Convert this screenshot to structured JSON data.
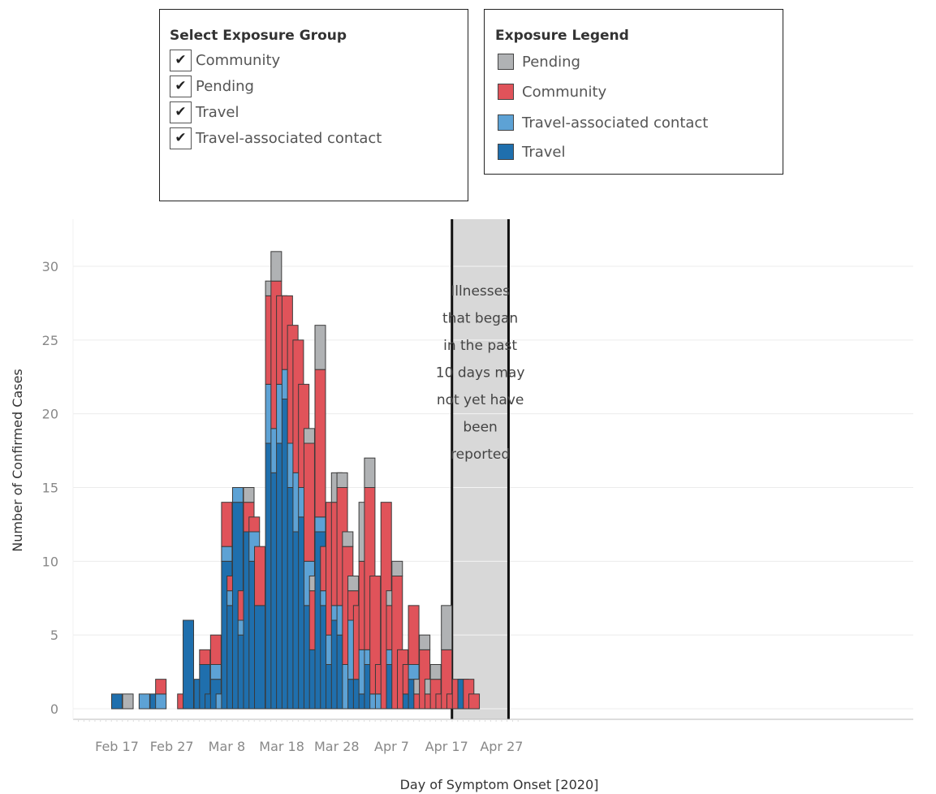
{
  "filter": {
    "title": "Select Exposure Group",
    "items": [
      {
        "label": "Community",
        "checked": true
      },
      {
        "label": "Pending",
        "checked": true
      },
      {
        "label": "Travel",
        "checked": true
      },
      {
        "label": "Travel-associated contact",
        "checked": true
      }
    ],
    "check_glyph": "✔"
  },
  "legend": {
    "title": "Exposure Legend",
    "items": [
      {
        "label": "Pending",
        "color": "#b0b2b4"
      },
      {
        "label": "Community",
        "color": "#e0535a"
      },
      {
        "label": "Travel-associated contact",
        "color": "#5da2d5"
      },
      {
        "label": "Travel",
        "color": "#1f6fad"
      }
    ]
  },
  "chart_data": {
    "type": "bar",
    "stacked": true,
    "xlabel": "Day of Symptom Onset [2020]",
    "ylabel": "Number of Confirmed Cases",
    "ylim": [
      0,
      32
    ],
    "yticks": [
      0,
      5,
      10,
      15,
      20,
      25,
      30
    ],
    "x_start": "2020-02-17",
    "x_end": "2020-04-29",
    "xticks": [
      {
        "date": "2020-02-17",
        "label": "Feb 17"
      },
      {
        "date": "2020-02-27",
        "label": "Feb 27"
      },
      {
        "date": "2020-03-08",
        "label": "Mar 8"
      },
      {
        "date": "2020-03-18",
        "label": "Mar 18"
      },
      {
        "date": "2020-03-28",
        "label": "Mar 28"
      },
      {
        "date": "2020-04-07",
        "label": "Apr 7"
      },
      {
        "date": "2020-04-17",
        "label": "Apr 17"
      },
      {
        "date": "2020-04-27",
        "label": "Apr 27"
      }
    ],
    "grid": true,
    "series_order": [
      "Travel",
      "Travel-associated contact",
      "Community",
      "Pending"
    ],
    "colors": {
      "Travel": "#1f6fad",
      "Travel-associated contact": "#5da2d5",
      "Community": "#e0535a",
      "Pending": "#b0b2b4"
    },
    "bars": [
      {
        "date": "2020-02-17",
        "Travel": 1,
        "Travel-associated contact": 0,
        "Community": 0,
        "Pending": 0
      },
      {
        "date": "2020-02-19",
        "Travel": 0,
        "Travel-associated contact": 0,
        "Community": 0,
        "Pending": 1
      },
      {
        "date": "2020-02-22",
        "Travel": 0,
        "Travel-associated contact": 1,
        "Community": 0,
        "Pending": 0
      },
      {
        "date": "2020-02-24",
        "Travel": 1,
        "Travel-associated contact": 0,
        "Community": 0,
        "Pending": 0
      },
      {
        "date": "2020-02-25",
        "Travel": 0,
        "Travel-associated contact": 1,
        "Community": 1,
        "Pending": 0
      },
      {
        "date": "2020-02-29",
        "Travel": 0,
        "Travel-associated contact": 0,
        "Community": 1,
        "Pending": 0
      },
      {
        "date": "2020-03-01",
        "Travel": 6,
        "Travel-associated contact": 0,
        "Community": 0,
        "Pending": 0
      },
      {
        "date": "2020-03-03",
        "Travel": 2,
        "Travel-associated contact": 0,
        "Community": 0,
        "Pending": 0
      },
      {
        "date": "2020-03-04",
        "Travel": 3,
        "Travel-associated contact": 0,
        "Community": 1,
        "Pending": 0
      },
      {
        "date": "2020-03-05",
        "Travel": 1,
        "Travel-associated contact": 0,
        "Community": 0,
        "Pending": 0
      },
      {
        "date": "2020-03-06",
        "Travel": 2,
        "Travel-associated contact": 1,
        "Community": 2,
        "Pending": 0
      },
      {
        "date": "2020-03-07",
        "Travel": 0,
        "Travel-associated contact": 1,
        "Community": 0,
        "Pending": 0
      },
      {
        "date": "2020-03-08",
        "Travel": 10,
        "Travel-associated contact": 1,
        "Community": 3,
        "Pending": 0
      },
      {
        "date": "2020-03-09",
        "Travel": 7,
        "Travel-associated contact": 1,
        "Community": 1,
        "Pending": 0
      },
      {
        "date": "2020-03-10",
        "Travel": 14,
        "Travel-associated contact": 1,
        "Community": 0,
        "Pending": 0
      },
      {
        "date": "2020-03-11",
        "Travel": 5,
        "Travel-associated contact": 1,
        "Community": 2,
        "Pending": 0
      },
      {
        "date": "2020-03-12",
        "Travel": 12,
        "Travel-associated contact": 0,
        "Community": 2,
        "Pending": 1
      },
      {
        "date": "2020-03-13",
        "Travel": 10,
        "Travel-associated contact": 2,
        "Community": 1,
        "Pending": 0
      },
      {
        "date": "2020-03-14",
        "Travel": 7,
        "Travel-associated contact": 0,
        "Community": 4,
        "Pending": 0
      },
      {
        "date": "2020-03-16",
        "Travel": 18,
        "Travel-associated contact": 4,
        "Community": 6,
        "Pending": 1
      },
      {
        "date": "2020-03-17",
        "Travel": 16,
        "Travel-associated contact": 3,
        "Community": 10,
        "Pending": 2
      },
      {
        "date": "2020-03-18",
        "Travel": 18,
        "Travel-associated contact": 4,
        "Community": 6,
        "Pending": 0
      },
      {
        "date": "2020-03-19",
        "Travel": 21,
        "Travel-associated contact": 2,
        "Community": 5,
        "Pending": 0
      },
      {
        "date": "2020-03-20",
        "Travel": 15,
        "Travel-associated contact": 3,
        "Community": 8,
        "Pending": 0
      },
      {
        "date": "2020-03-21",
        "Travel": 12,
        "Travel-associated contact": 4,
        "Community": 9,
        "Pending": 0
      },
      {
        "date": "2020-03-22",
        "Travel": 13,
        "Travel-associated contact": 2,
        "Community": 7,
        "Pending": 0
      },
      {
        "date": "2020-03-23",
        "Travel": 7,
        "Travel-associated contact": 3,
        "Community": 8,
        "Pending": 1
      },
      {
        "date": "2020-03-24",
        "Travel": 4,
        "Travel-associated contact": 0,
        "Community": 4,
        "Pending": 1
      },
      {
        "date": "2020-03-25",
        "Travel": 12,
        "Travel-associated contact": 1,
        "Community": 10,
        "Pending": 3
      },
      {
        "date": "2020-03-26",
        "Travel": 7,
        "Travel-associated contact": 1,
        "Community": 3,
        "Pending": 0
      },
      {
        "date": "2020-03-27",
        "Travel": 3,
        "Travel-associated contact": 2,
        "Community": 9,
        "Pending": 0
      },
      {
        "date": "2020-03-28",
        "Travel": 6,
        "Travel-associated contact": 1,
        "Community": 7,
        "Pending": 2
      },
      {
        "date": "2020-03-29",
        "Travel": 5,
        "Travel-associated contact": 2,
        "Community": 8,
        "Pending": 1
      },
      {
        "date": "2020-03-30",
        "Travel": 0,
        "Travel-associated contact": 3,
        "Community": 8,
        "Pending": 1
      },
      {
        "date": "2020-03-31",
        "Travel": 2,
        "Travel-associated contact": 4,
        "Community": 2,
        "Pending": 1
      },
      {
        "date": "2020-04-01",
        "Travel": 2,
        "Travel-associated contact": 0,
        "Community": 5,
        "Pending": 0
      },
      {
        "date": "2020-04-02",
        "Travel": 1,
        "Travel-associated contact": 3,
        "Community": 6,
        "Pending": 4
      },
      {
        "date": "2020-04-03",
        "Travel": 3,
        "Travel-associated contact": 1,
        "Community": 11,
        "Pending": 2
      },
      {
        "date": "2020-04-04",
        "Travel": 0,
        "Travel-associated contact": 1,
        "Community": 8,
        "Pending": 0
      },
      {
        "date": "2020-04-05",
        "Travel": 0,
        "Travel-associated contact": 1,
        "Community": 2,
        "Pending": 0
      },
      {
        "date": "2020-04-06",
        "Travel": 0,
        "Travel-associated contact": 0,
        "Community": 14,
        "Pending": 0
      },
      {
        "date": "2020-04-07",
        "Travel": 3,
        "Travel-associated contact": 1,
        "Community": 3,
        "Pending": 1
      },
      {
        "date": "2020-04-08",
        "Travel": 0,
        "Travel-associated contact": 0,
        "Community": 9,
        "Pending": 1
      },
      {
        "date": "2020-04-09",
        "Travel": 0,
        "Travel-associated contact": 0,
        "Community": 4,
        "Pending": 0
      },
      {
        "date": "2020-04-10",
        "Travel": 1,
        "Travel-associated contact": 0,
        "Community": 2,
        "Pending": 0
      },
      {
        "date": "2020-04-11",
        "Travel": 2,
        "Travel-associated contact": 1,
        "Community": 4,
        "Pending": 0
      },
      {
        "date": "2020-04-12",
        "Travel": 0,
        "Travel-associated contact": 0,
        "Community": 1,
        "Pending": 1
      },
      {
        "date": "2020-04-13",
        "Travel": 0,
        "Travel-associated contact": 0,
        "Community": 4,
        "Pending": 1
      },
      {
        "date": "2020-04-14",
        "Travel": 0,
        "Travel-associated contact": 0,
        "Community": 1,
        "Pending": 1
      },
      {
        "date": "2020-04-15",
        "Travel": 0,
        "Travel-associated contact": 0,
        "Community": 2,
        "Pending": 1
      },
      {
        "date": "2020-04-16",
        "Travel": 0,
        "Travel-associated contact": 0,
        "Community": 1,
        "Pending": 0
      },
      {
        "date": "2020-04-17",
        "Travel": 0,
        "Travel-associated contact": 0,
        "Community": 4,
        "Pending": 3
      },
      {
        "date": "2020-04-18",
        "Travel": 0,
        "Travel-associated contact": 0,
        "Community": 1,
        "Pending": 0
      },
      {
        "date": "2020-04-19",
        "Travel": 0,
        "Travel-associated contact": 0,
        "Community": 2,
        "Pending": 0
      },
      {
        "date": "2020-04-20",
        "Travel": 2,
        "Travel-associated contact": 0,
        "Community": 0,
        "Pending": 0
      },
      {
        "date": "2020-04-21",
        "Travel": 0,
        "Travel-associated contact": 0,
        "Community": 2,
        "Pending": 0
      },
      {
        "date": "2020-04-22",
        "Travel": 0,
        "Travel-associated contact": 0,
        "Community": 1,
        "Pending": 0
      }
    ],
    "annotation": {
      "lines": [
        "Illnesses",
        "that began",
        "in the past",
        "10 days may",
        "not yet have",
        "been",
        "reported"
      ],
      "from_date": "2020-04-19",
      "to_date": "2020-04-29",
      "fill": "#d8d8d8"
    }
  }
}
